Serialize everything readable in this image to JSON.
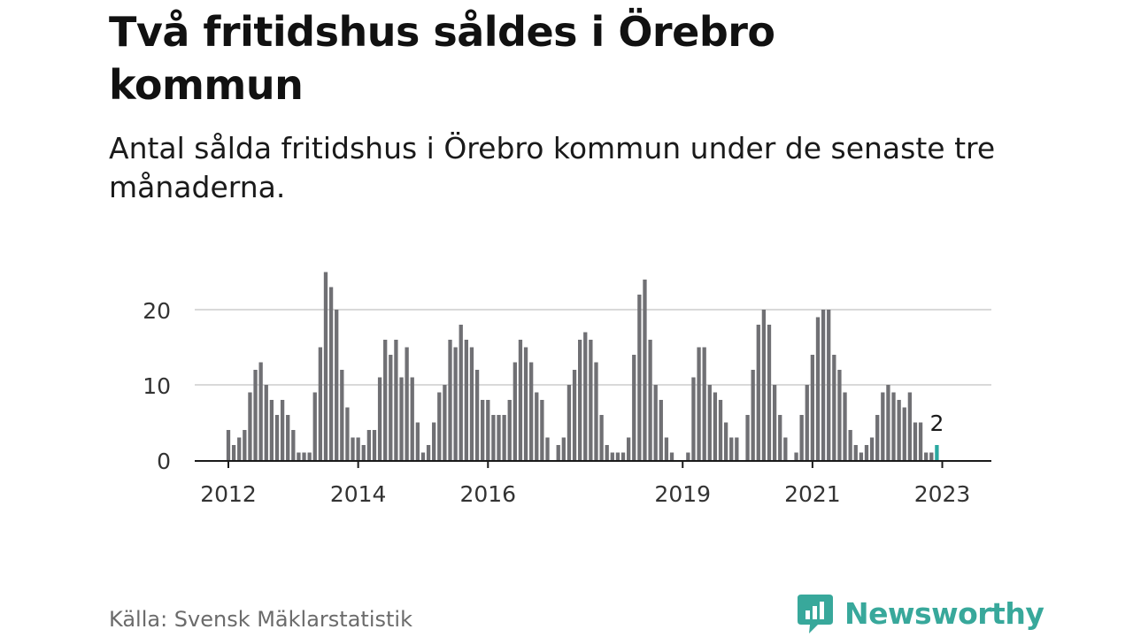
{
  "title": "Två fritidshus såldes i Örebro kommun",
  "subtitle": "Antal sålda fritidshus i Örebro kommun under de senaste tre månaderna.",
  "source": "Källa: Svensk Mäklarstatistik",
  "brand": {
    "name": "Newsworthy",
    "icon": "newsworthy-chat-chart-icon"
  },
  "colors": {
    "bar": "#707074",
    "highlight": "#2aa8a0",
    "brand": "#38a89b",
    "grid": "#d9d9d9",
    "axis": "#1a1a1a"
  },
  "chart_data": {
    "type": "bar",
    "title": "Två fritidshus såldes i Örebro kommun",
    "subtitle": "Antal sålda fritidshus i Örebro kommun under de senaste tre månaderna.",
    "xlabel": "",
    "ylabel": "",
    "ylim": [
      0,
      25
    ],
    "grid": true,
    "y_ticks": [
      0,
      10,
      20
    ],
    "x_tick_labels": [
      {
        "label": "2012",
        "year": 2012
      },
      {
        "label": "2014",
        "year": 2014
      },
      {
        "label": "2016",
        "year": 2016
      },
      {
        "label": "2019",
        "year": 2019
      },
      {
        "label": "2021",
        "year": 2021
      },
      {
        "label": "2023",
        "year": 2023
      }
    ],
    "start_year": 2012,
    "values": [
      4,
      2,
      3,
      4,
      9,
      12,
      13,
      10,
      8,
      6,
      8,
      6,
      4,
      1,
      1,
      1,
      9,
      15,
      25,
      23,
      20,
      12,
      7,
      3,
      3,
      2,
      4,
      4,
      11,
      16,
      14,
      16,
      11,
      15,
      11,
      5,
      1,
      2,
      5,
      9,
      10,
      16,
      15,
      18,
      16,
      15,
      12,
      8,
      8,
      6,
      6,
      6,
      8,
      13,
      16,
      15,
      13,
      9,
      8,
      3,
      0,
      2,
      3,
      10,
      12,
      16,
      17,
      16,
      13,
      6,
      2,
      1,
      1,
      1,
      3,
      14,
      22,
      24,
      16,
      10,
      8,
      3,
      1,
      0,
      0,
      1,
      11,
      15,
      15,
      10,
      9,
      8,
      5,
      3,
      3,
      0,
      6,
      12,
      18,
      20,
      18,
      10,
      6,
      3,
      0,
      1,
      6,
      10,
      14,
      19,
      20,
      20,
      14,
      12,
      9,
      4,
      2,
      1,
      2,
      3,
      6,
      9,
      10,
      9,
      8,
      7,
      9,
      5,
      5,
      1,
      1,
      2
    ],
    "highlight_last": true,
    "last_value_label": "2"
  }
}
